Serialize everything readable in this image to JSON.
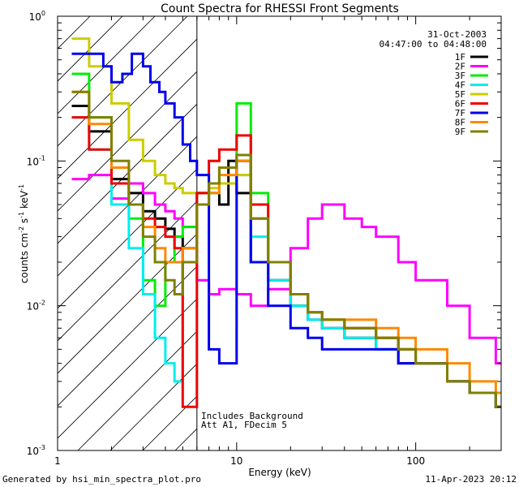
{
  "chart_data": {
    "type": "line",
    "title": "Count Spectra for RHESSI Front Segments",
    "xlabel": "Energy (keV)",
    "ylabel_parts": {
      "base": "counts cm",
      "exp1": "-2",
      "mid": " s",
      "exp2": "-1",
      "tail": " keV",
      "exp3": "-1"
    },
    "xscale": "log",
    "yscale": "log",
    "xlim": [
      1,
      300
    ],
    "ylim": [
      0.001,
      1
    ],
    "x_ticks": [
      {
        "value": 1,
        "label": "1"
      },
      {
        "value": 10,
        "label": "10"
      },
      {
        "value": 100,
        "label": "100"
      }
    ],
    "y_ticks": [
      {
        "value": 1,
        "base": "10",
        "exp": "0"
      },
      {
        "value": 0.1,
        "base": "10",
        "exp": "-1"
      },
      {
        "value": 0.01,
        "base": "10",
        "exp": "-2"
      },
      {
        "value": 0.001,
        "base": "10",
        "exp": "-3"
      }
    ],
    "date": "31-Oct-2003",
    "time_range": "04:47:00 to 04:48:00",
    "annotations": [
      "Includes Background",
      "Att A1, FDecim 5"
    ],
    "hatched_region": {
      "x_start": 1,
      "x_end": 6
    },
    "legend_position": "top-right",
    "series": [
      {
        "name": "1F",
        "color": "#000000",
        "x": [
          1.2,
          1.5,
          2,
          2.5,
          3,
          3.5,
          4,
          4.5,
          5,
          6,
          7,
          8,
          9,
          10,
          12,
          15,
          20,
          25,
          30,
          40,
          60,
          80,
          100,
          150,
          200,
          280
        ],
        "y": [
          0.24,
          0.16,
          0.075,
          0.06,
          0.045,
          0.04,
          0.034,
          0.03,
          0.025,
          0.06,
          0.06,
          0.05,
          0.1,
          0.06,
          0.02,
          0.015,
          0.01,
          0.008,
          0.007,
          0.006,
          0.005,
          0.004,
          0.004,
          0.003,
          0.0025,
          0.002
        ]
      },
      {
        "name": "2F",
        "color": "#ff00ff",
        "x": [
          1.2,
          1.5,
          2,
          2.5,
          3,
          3.5,
          4,
          4.5,
          5,
          6,
          7,
          8,
          10,
          12,
          15,
          20,
          25,
          30,
          40,
          50,
          60,
          80,
          100,
          150,
          200,
          280
        ],
        "y": [
          0.075,
          0.08,
          0.055,
          0.07,
          0.06,
          0.05,
          0.045,
          0.04,
          0.035,
          0.015,
          0.012,
          0.013,
          0.012,
          0.01,
          0.013,
          0.025,
          0.04,
          0.05,
          0.04,
          0.035,
          0.03,
          0.02,
          0.015,
          0.01,
          0.006,
          0.004
        ]
      },
      {
        "name": "3F",
        "color": "#00ee00",
        "x": [
          1.2,
          1.5,
          2,
          2.5,
          3,
          3.5,
          4,
          4.5,
          5,
          6,
          7,
          8,
          10,
          12,
          15,
          20,
          25,
          30,
          40,
          60,
          80,
          100,
          150,
          200,
          280
        ],
        "y": [
          0.4,
          0.2,
          0.07,
          0.04,
          0.015,
          0.01,
          0.02,
          0.03,
          0.035,
          0.06,
          0.06,
          0.09,
          0.25,
          0.06,
          0.02,
          0.012,
          0.009,
          0.008,
          0.007,
          0.006,
          0.005,
          0.004,
          0.003,
          0.0025,
          0.002
        ]
      },
      {
        "name": "4F",
        "color": "#00eeee",
        "x": [
          1.2,
          1.5,
          2,
          2.5,
          3,
          3.5,
          4,
          4.5,
          5,
          6,
          7,
          8,
          10,
          12,
          15,
          20,
          25,
          30,
          40,
          60,
          80,
          100,
          150,
          200,
          280
        ],
        "y": [
          0.2,
          0.12,
          0.05,
          0.025,
          0.012,
          0.006,
          0.004,
          0.003,
          0.025,
          0.05,
          0.06,
          0.07,
          0.08,
          0.03,
          0.015,
          0.01,
          0.008,
          0.007,
          0.006,
          0.005,
          0.005,
          0.004,
          0.003,
          0.0025,
          0.002
        ]
      },
      {
        "name": "5F",
        "color": "#cccc00",
        "x": [
          1.2,
          1.5,
          2,
          2.5,
          3,
          3.5,
          4,
          4.5,
          5,
          6,
          7,
          8,
          10,
          12,
          15,
          20,
          25,
          30,
          40,
          60,
          80,
          100,
          150,
          200,
          280
        ],
        "y": [
          0.7,
          0.45,
          0.25,
          0.14,
          0.1,
          0.08,
          0.07,
          0.065,
          0.06,
          0.06,
          0.065,
          0.07,
          0.08,
          0.04,
          0.02,
          0.012,
          0.009,
          0.008,
          0.007,
          0.006,
          0.005,
          0.004,
          0.003,
          0.0025,
          0.002
        ]
      },
      {
        "name": "6F",
        "color": "#ee0000",
        "x": [
          1.2,
          1.5,
          2,
          2.5,
          3,
          3.5,
          4,
          4.5,
          5,
          6,
          7,
          8,
          10,
          12,
          15,
          20,
          25,
          30,
          40,
          60,
          80,
          100,
          150,
          200,
          280
        ],
        "y": [
          0.2,
          0.12,
          0.07,
          0.05,
          0.04,
          0.035,
          0.03,
          0.025,
          0.002,
          0.06,
          0.1,
          0.12,
          0.15,
          0.05,
          0.02,
          0.012,
          0.009,
          0.008,
          0.007,
          0.006,
          0.005,
          0.004,
          0.003,
          0.0025,
          0.002
        ]
      },
      {
        "name": "7F",
        "color": "#0000ee",
        "x": [
          1.2,
          1.5,
          1.8,
          2,
          2.3,
          2.6,
          3,
          3.3,
          3.7,
          4,
          4.5,
          5,
          5.5,
          6,
          7,
          8,
          10,
          12,
          15,
          20,
          25,
          30,
          40,
          60,
          80,
          100,
          150,
          200,
          280
        ],
        "y": [
          0.55,
          0.55,
          0.45,
          0.35,
          0.4,
          0.55,
          0.45,
          0.35,
          0.3,
          0.25,
          0.2,
          0.13,
          0.1,
          0.08,
          0.005,
          0.004,
          0.1,
          0.02,
          0.01,
          0.007,
          0.006,
          0.005,
          0.005,
          0.005,
          0.004,
          0.004,
          0.003,
          0.0025,
          0.002
        ]
      },
      {
        "name": "8F",
        "color": "#ff8800",
        "x": [
          1.2,
          1.5,
          2,
          2.5,
          3,
          3.5,
          4,
          4.5,
          5,
          6,
          7,
          8,
          10,
          12,
          15,
          20,
          25,
          30,
          40,
          60,
          80,
          100,
          150,
          200,
          280
        ],
        "y": [
          0.3,
          0.18,
          0.09,
          0.05,
          0.035,
          0.025,
          0.02,
          0.02,
          0.025,
          0.05,
          0.06,
          0.08,
          0.1,
          0.04,
          0.02,
          0.012,
          0.009,
          0.008,
          0.008,
          0.007,
          0.006,
          0.005,
          0.004,
          0.003,
          0.0025
        ]
      },
      {
        "name": "9F",
        "color": "#808000",
        "x": [
          1.2,
          1.5,
          2,
          2.5,
          3,
          3.5,
          4,
          4.5,
          5,
          6,
          7,
          8,
          10,
          12,
          15,
          20,
          25,
          30,
          40,
          60,
          80,
          100,
          150,
          200,
          280
        ],
        "y": [
          0.3,
          0.2,
          0.1,
          0.05,
          0.03,
          0.02,
          0.015,
          0.012,
          0.02,
          0.05,
          0.07,
          0.09,
          0.11,
          0.04,
          0.02,
          0.012,
          0.009,
          0.008,
          0.007,
          0.006,
          0.005,
          0.004,
          0.003,
          0.0025,
          0.002
        ]
      }
    ]
  },
  "footer": {
    "left": "Generated by hsi_min_spectra_plot.pro",
    "right": "11-Apr-2023 20:12"
  }
}
